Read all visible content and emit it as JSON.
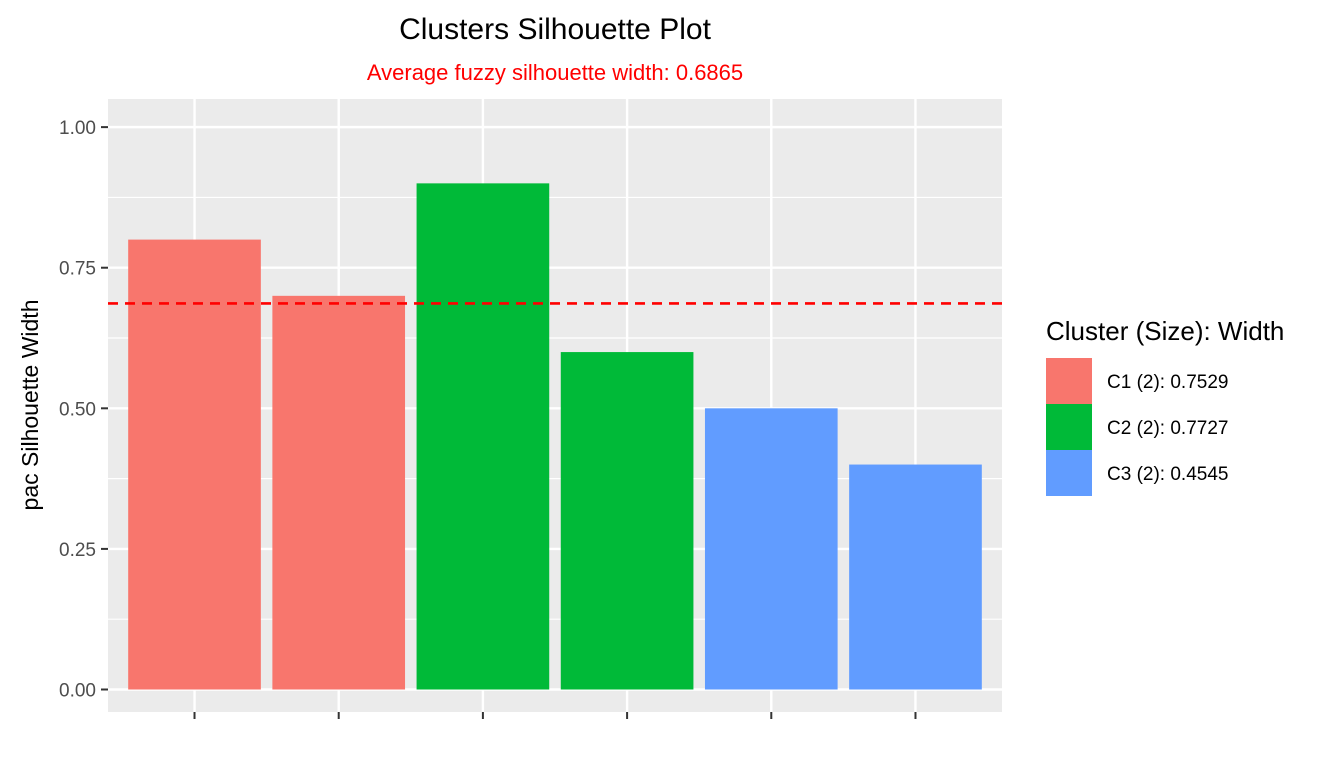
{
  "chart_data": {
    "type": "bar",
    "title": "Clusters Silhouette Plot",
    "subtitle": "Average fuzzy silhouette width: 0.6865",
    "xlabel": "",
    "ylabel": "pac Silhouette Width",
    "ylim": [
      -0.04,
      1.05
    ],
    "yticks": [
      "0.00",
      "0.25",
      "0.50",
      "0.75",
      "1.00"
    ],
    "ytick_values": [
      0,
      0.25,
      0.5,
      0.75,
      1.0
    ],
    "values": [
      0.8,
      0.7,
      0.9,
      0.6,
      0.5,
      0.4
    ],
    "clusters": [
      "C1",
      "C1",
      "C2",
      "C2",
      "C3",
      "C3"
    ],
    "reference_line": {
      "value": 0.6865,
      "style": "dashed",
      "color": "#ff0000"
    },
    "grid": true,
    "legend": {
      "title": "Cluster (Size): Width",
      "position": "right",
      "entries": [
        {
          "cluster": "C1",
          "label": "C1 (2): 0.7529",
          "color": "#F8766D"
        },
        {
          "cluster": "C2",
          "label": "C2 (2): 0.7727",
          "color": "#00BA38"
        },
        {
          "cluster": "C3",
          "label": "C3 (2): 0.4545",
          "color": "#619CFF"
        }
      ]
    },
    "colors": {
      "panel_background": "#EBEBEB",
      "grid": "#FFFFFF",
      "subtitle": "#FF0000"
    }
  }
}
